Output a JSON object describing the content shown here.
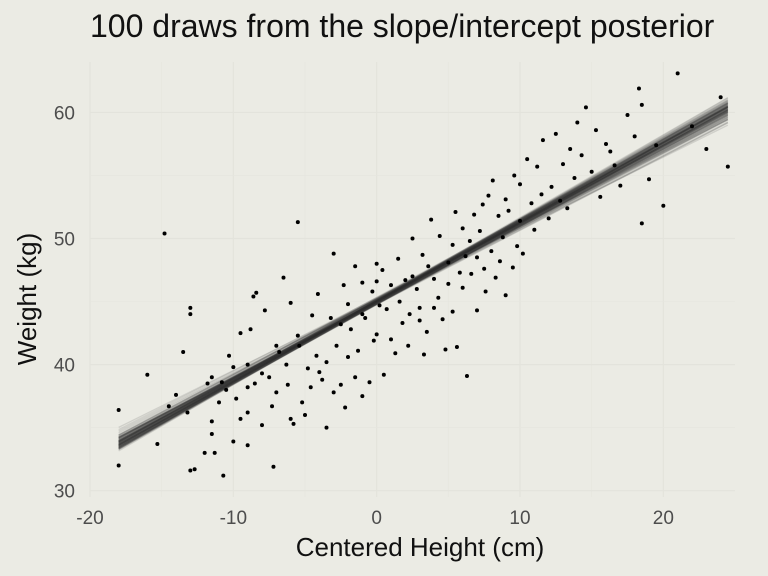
{
  "chart_data": {
    "type": "scatter",
    "title": "100 draws from the slope/intercept posterior",
    "xlabel": "Centered Height (cm)",
    "ylabel": "Weight (kg)",
    "xlim": [
      -20,
      25
    ],
    "ylim": [
      29.5,
      64
    ],
    "x_ticks": [
      -20,
      -10,
      0,
      10,
      20
    ],
    "y_ticks": [
      30,
      40,
      50,
      60
    ],
    "grid": true,
    "legend": "none",
    "point_color": "#000000",
    "line_color": "#333333",
    "background_color": "#ebebe4",
    "regression_draws": {
      "count": 100,
      "intercept_mean": 45.0,
      "slope_mean": 0.62,
      "x_range": [
        -18,
        24.5
      ]
    },
    "points": [
      [
        -18,
        36.4
      ],
      [
        -18,
        32
      ],
      [
        -16,
        39.2
      ],
      [
        -15.3,
        33.7
      ],
      [
        -14.8,
        50.4
      ],
      [
        -14.5,
        36.7
      ],
      [
        -14,
        37.6
      ],
      [
        -13.5,
        41
      ],
      [
        -13.2,
        36.2
      ],
      [
        -13,
        44.5
      ],
      [
        -13,
        44
      ],
      [
        -13,
        31.6
      ],
      [
        -12.7,
        31.7
      ],
      [
        -12,
        33
      ],
      [
        -11.8,
        38.5
      ],
      [
        -11.5,
        39
      ],
      [
        -11.5,
        35.5
      ],
      [
        -11.5,
        34.5
      ],
      [
        -11.3,
        33
      ],
      [
        -11,
        37
      ],
      [
        -10.8,
        38.6
      ],
      [
        -10.7,
        31.2
      ],
      [
        -10.5,
        38
      ],
      [
        -10.3,
        40.7
      ],
      [
        -10,
        39.8
      ],
      [
        -10,
        33.9
      ],
      [
        -9.8,
        37.3
      ],
      [
        -9.5,
        42.5
      ],
      [
        -9.5,
        35.7
      ],
      [
        -9,
        40
      ],
      [
        -9,
        38.2
      ],
      [
        -9,
        33.6
      ],
      [
        -9,
        36.2
      ],
      [
        -8.8,
        42.8
      ],
      [
        -8.6,
        45.4
      ],
      [
        -8.5,
        38.5
      ],
      [
        -8.4,
        45.7
      ],
      [
        -8,
        39.3
      ],
      [
        -8,
        35.2
      ],
      [
        -7.8,
        44.3
      ],
      [
        -7.5,
        39
      ],
      [
        -7.3,
        36.7
      ],
      [
        -7.2,
        31.9
      ],
      [
        -7,
        37.8
      ],
      [
        -7,
        41.5
      ],
      [
        -6.8,
        41
      ],
      [
        -6.5,
        46.9
      ],
      [
        -6.3,
        40
      ],
      [
        -6.2,
        38.4
      ],
      [
        -6,
        44.9
      ],
      [
        -6,
        35.7
      ],
      [
        -5.8,
        35.3
      ],
      [
        -5.5,
        51.3
      ],
      [
        -5.5,
        42.3
      ],
      [
        -5.4,
        41.5
      ],
      [
        -5.2,
        37
      ],
      [
        -5,
        36
      ],
      [
        -4.8,
        39.7
      ],
      [
        -4.6,
        38.2
      ],
      [
        -4.5,
        43.9
      ],
      [
        -4.2,
        40.7
      ],
      [
        -4.1,
        45.6
      ],
      [
        -4,
        39.4
      ],
      [
        -3.8,
        38.8
      ],
      [
        -3.5,
        35
      ],
      [
        -3.5,
        40.2
      ],
      [
        -3.2,
        43.7
      ],
      [
        -3,
        37.8
      ],
      [
        -3,
        48.8
      ],
      [
        -2.8,
        41.5
      ],
      [
        -2.5,
        43.2
      ],
      [
        -2.5,
        38.4
      ],
      [
        -2.3,
        46.3
      ],
      [
        -2.2,
        36.6
      ],
      [
        -2,
        40.6
      ],
      [
        -2,
        44.8
      ],
      [
        -1.8,
        42.8
      ],
      [
        -1.5,
        47.8
      ],
      [
        -1.5,
        39
      ],
      [
        -1.3,
        41.1
      ],
      [
        -1,
        46.5
      ],
      [
        -1,
        44
      ],
      [
        -1,
        37.5
      ],
      [
        -0.8,
        43.7
      ],
      [
        -0.5,
        38.6
      ],
      [
        -0.3,
        45.8
      ],
      [
        -0.2,
        41.9
      ],
      [
        0,
        48
      ],
      [
        0,
        42.4
      ],
      [
        0,
        46.6
      ],
      [
        0.2,
        44.7
      ],
      [
        0.4,
        47.5
      ],
      [
        0.5,
        39.2
      ],
      [
        0.7,
        44.4
      ],
      [
        1,
        42
      ],
      [
        1,
        46.3
      ],
      [
        1.3,
        40.9
      ],
      [
        1.5,
        48.4
      ],
      [
        1.6,
        45
      ],
      [
        1.8,
        43.3
      ],
      [
        2,
        46.7
      ],
      [
        2.2,
        41.5
      ],
      [
        2.3,
        44
      ],
      [
        2.5,
        50
      ],
      [
        2.5,
        47
      ],
      [
        2.8,
        46
      ],
      [
        3,
        43.5
      ],
      [
        3,
        44.5
      ],
      [
        3.2,
        48.7
      ],
      [
        3.3,
        40.8
      ],
      [
        3.5,
        42.6
      ],
      [
        3.6,
        47.8
      ],
      [
        3.8,
        51.5
      ],
      [
        4,
        44.5
      ],
      [
        4,
        46.8
      ],
      [
        4.3,
        45.3
      ],
      [
        4.4,
        50.2
      ],
      [
        4.6,
        43.6
      ],
      [
        4.8,
        41.2
      ],
      [
        5,
        48.1
      ],
      [
        5,
        46.4
      ],
      [
        5.3,
        49.5
      ],
      [
        5.3,
        44.2
      ],
      [
        5.5,
        52.1
      ],
      [
        5.6,
        41.4
      ],
      [
        5.8,
        47.3
      ],
      [
        6,
        46.1
      ],
      [
        6,
        50.8
      ],
      [
        6.2,
        48.6
      ],
      [
        6.3,
        39.1
      ],
      [
        6.5,
        49.8
      ],
      [
        6.6,
        47.2
      ],
      [
        6.8,
        51.9
      ],
      [
        7,
        44.3
      ],
      [
        7,
        48.5
      ],
      [
        7.2,
        50.6
      ],
      [
        7.4,
        52.7
      ],
      [
        7.5,
        47.6
      ],
      [
        7.6,
        45.8
      ],
      [
        7.8,
        53.4
      ],
      [
        8,
        49
      ],
      [
        8.1,
        54.6
      ],
      [
        8.3,
        46.9
      ],
      [
        8.5,
        51.8
      ],
      [
        8.6,
        48.2
      ],
      [
        8.8,
        50.1
      ],
      [
        9,
        45.5
      ],
      [
        9,
        53.1
      ],
      [
        9.2,
        52.2
      ],
      [
        9.5,
        47.7
      ],
      [
        9.6,
        55
      ],
      [
        9.8,
        49.4
      ],
      [
        10,
        54.3
      ],
      [
        10,
        51.4
      ],
      [
        10.2,
        48.8
      ],
      [
        10.5,
        56.3
      ],
      [
        10.8,
        52.8
      ],
      [
        11,
        50.7
      ],
      [
        11.2,
        55.7
      ],
      [
        11.5,
        53.5
      ],
      [
        11.6,
        57.8
      ],
      [
        12,
        51.6
      ],
      [
        12.2,
        54.1
      ],
      [
        12.5,
        58.3
      ],
      [
        12.8,
        53
      ],
      [
        13,
        55.9
      ],
      [
        13.3,
        52.4
      ],
      [
        13.5,
        57.1
      ],
      [
        13.8,
        54.8
      ],
      [
        14,
        59.2
      ],
      [
        14.3,
        56.6
      ],
      [
        14.6,
        60.4
      ],
      [
        15,
        55.3
      ],
      [
        15.3,
        58.6
      ],
      [
        15.6,
        53.3
      ],
      [
        16,
        57.5
      ],
      [
        16.3,
        56.9
      ],
      [
        16.6,
        55.8
      ],
      [
        17,
        54.2
      ],
      [
        17.5,
        59.8
      ],
      [
        18,
        58.1
      ],
      [
        18.5,
        51.2
      ],
      [
        18.3,
        61.9
      ],
      [
        18.5,
        60.6
      ],
      [
        19,
        54.7
      ],
      [
        19.5,
        57.4
      ],
      [
        20,
        52.6
      ],
      [
        21,
        63.1
      ],
      [
        22,
        58.9
      ],
      [
        23,
        57.1
      ],
      [
        24,
        61.2
      ],
      [
        24.5,
        55.7
      ]
    ]
  }
}
